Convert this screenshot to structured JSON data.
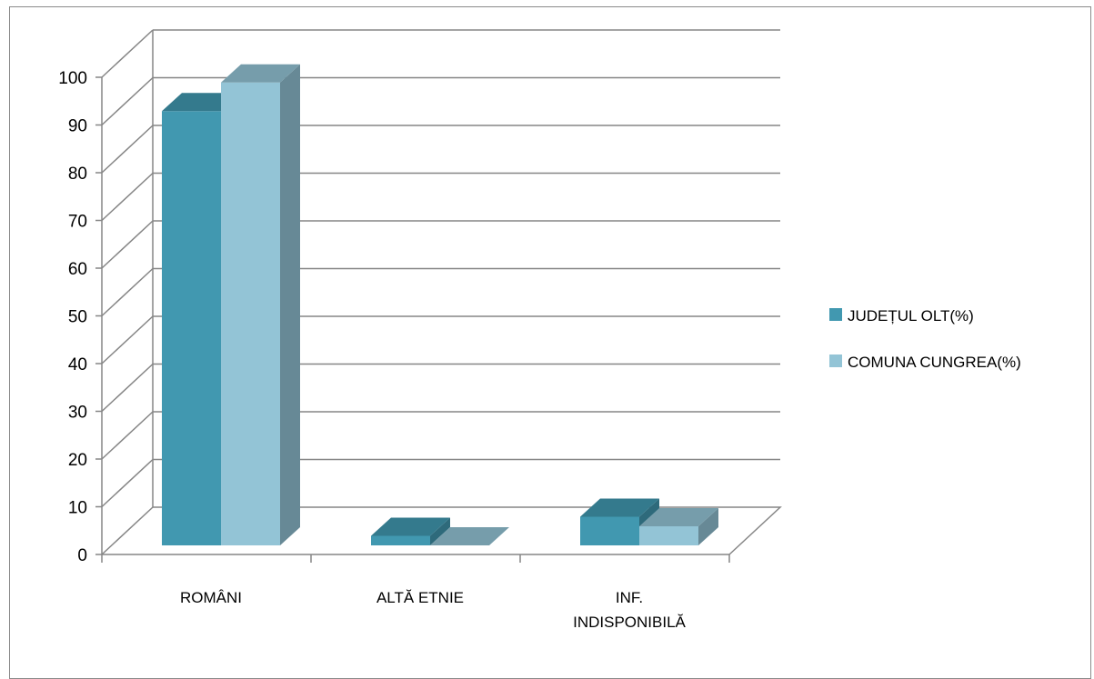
{
  "chart_data": {
    "type": "bar",
    "style": "3d-clustered-column",
    "categories": [
      [
        "ROMÂNI"
      ],
      [
        "ALTĂ ETNIE"
      ],
      [
        "INF.",
        "INDISPONIBILĂ"
      ]
    ],
    "series": [
      {
        "name": "JUDEȚUL OLT(%)",
        "values": [
          91,
          2,
          6
        ],
        "color": "#4198B0"
      },
      {
        "name": "COMUNA CUNGREA(%)",
        "values": [
          97,
          0,
          4
        ],
        "color": "#93C4D6"
      }
    ],
    "ylim": [
      0,
      100
    ],
    "yticks": [
      0,
      10,
      20,
      30,
      40,
      50,
      60,
      70,
      80,
      90,
      100
    ],
    "grid": true,
    "legend_position": "right"
  }
}
